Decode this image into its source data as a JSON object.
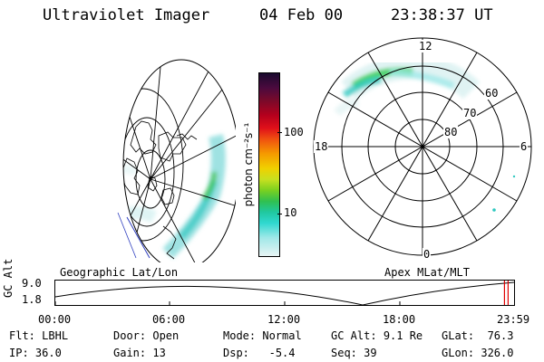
{
  "header": {
    "instrument": "Ultraviolet Imager",
    "date": "04 Feb 00",
    "time": "23:38:37 UT"
  },
  "left_panel": {
    "label": "Geographic Lat/Lon"
  },
  "right_panel": {
    "label": "Apex MLat/MLT",
    "mlt_labels": [
      "12",
      "18",
      "6",
      "0"
    ],
    "lat_labels": [
      "60",
      "70",
      "80"
    ]
  },
  "colorbar": {
    "unit_label": "photon cm⁻²s⁻¹",
    "ticks": [
      "100",
      "10"
    ],
    "colors": [
      "#1a0a2e",
      "#4b0a3e",
      "#7a0a2a",
      "#b5001d",
      "#e0101a",
      "#f05010",
      "#f59a00",
      "#f0d000",
      "#c8e020",
      "#7ad020",
      "#30c050",
      "#20c8a0",
      "#30d8d0",
      "#a0e8e8",
      "#e8f4f4"
    ]
  },
  "altitude_plot": {
    "ylabel": "GC Alt",
    "ymax_label": "9.0",
    "ymin_label": "1.8",
    "time_ticks": [
      "00:00",
      "06:00",
      "12:00",
      "18:00",
      "23:59"
    ],
    "current_fraction": 0.985,
    "marker_color": "#e00000"
  },
  "footer": {
    "row1": [
      {
        "key": "Flt:",
        "value": "LBHL"
      },
      {
        "key": "Door:",
        "value": "Open"
      },
      {
        "key": "Mode:",
        "value": "Normal"
      },
      {
        "key": "GC Alt:",
        "value": "9.1 Re"
      },
      {
        "key": "GLat:",
        "value": "76.3"
      }
    ],
    "row2": [
      {
        "key": "IP:",
        "value": "36.0"
      },
      {
        "key": "Gain:",
        "value": "13"
      },
      {
        "key": "Dsp:",
        "value": "-5.4"
      },
      {
        "key": "Seq:",
        "value": "39"
      },
      {
        "key": "GLon:",
        "value": "326.0"
      }
    ]
  }
}
